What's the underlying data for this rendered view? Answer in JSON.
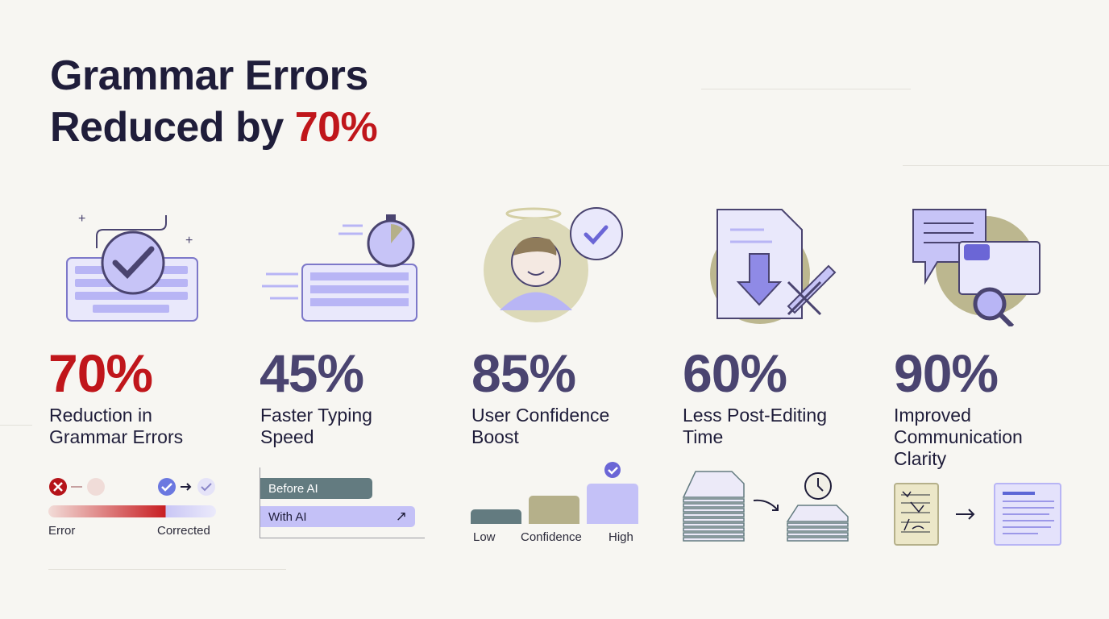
{
  "title": {
    "line1": "Grammar Errors",
    "line2_prefix": "Reduced by ",
    "line2_highlight": "70%"
  },
  "colors": {
    "navy": "#1f1d3a",
    "red": "#c0161b",
    "stat_purple": "#4a4470",
    "lavender": "#b8b5f5",
    "olive": "#b5b08a",
    "slate": "#637b80",
    "background": "#f7f6f2"
  },
  "stats": [
    {
      "value": "70%",
      "label_line1": "Reduction in",
      "label_line2": "Grammar Errors",
      "icon": "keyboard-check-icon"
    },
    {
      "value": "45%",
      "label_line1": "Faster Typing",
      "label_line2": "Speed",
      "icon": "keyboard-stopwatch-icon"
    },
    {
      "value": "85%",
      "label_line1": "User Confidence",
      "label_line2": "Boost",
      "icon": "smiling-user-icon"
    },
    {
      "value": "60%",
      "label_line1": "Less Post-Editing",
      "label_line2": "Time",
      "icon": "document-download-pen-icon"
    },
    {
      "value": "90%",
      "label_line1": "Improved",
      "label_line2": "Communication",
      "label_line3": "Clarity",
      "icon": "chat-magnifier-icon"
    }
  ],
  "error_bar": {
    "left_label": "Error",
    "right_label": "Corrected",
    "progress": 0.7
  },
  "typing_bars": {
    "before_label": "Before AI",
    "after_label": "With AI"
  },
  "confidence_bars": {
    "labels": [
      "Low",
      "Confidence",
      "High"
    ]
  }
}
